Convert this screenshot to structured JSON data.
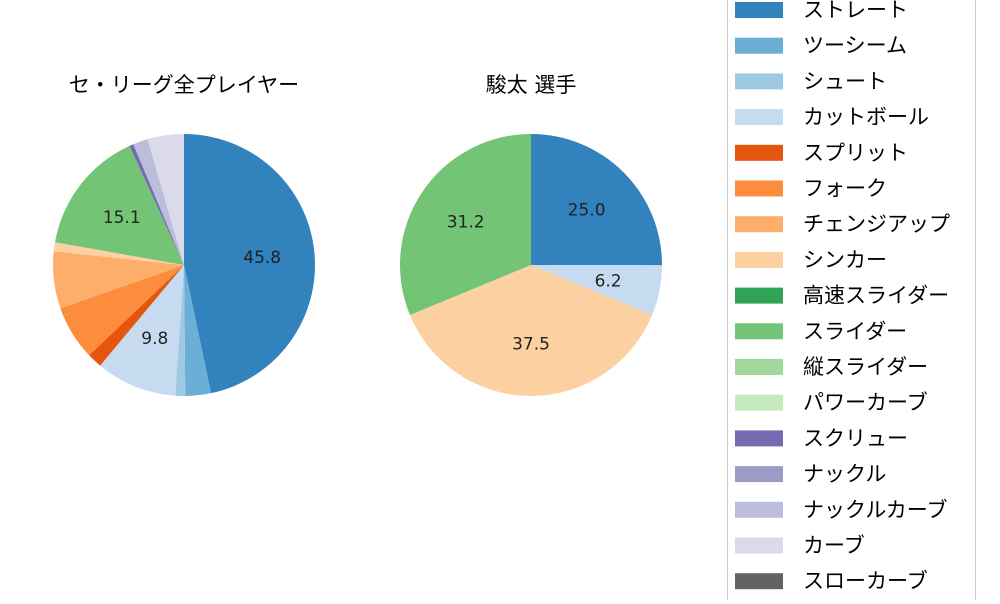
{
  "chart_data": [
    {
      "type": "pie",
      "title": "セ・リーグ全プレイヤー",
      "slices": [
        {
          "label": "ストレート",
          "value": 45.8,
          "color": "#3182bd",
          "show_label": true
        },
        {
          "label": "ツーシーム",
          "value": 3.1,
          "color": "#6baed6",
          "show_label": false
        },
        {
          "label": "シュート",
          "value": 1.2,
          "color": "#9ecae1",
          "show_label": false
        },
        {
          "label": "カットボール",
          "value": 9.8,
          "color": "#c6dbef",
          "show_label": true
        },
        {
          "label": "スプリット",
          "value": 1.8,
          "color": "#e6550d",
          "show_label": false
        },
        {
          "label": "フォーク",
          "value": 6.6,
          "color": "#fd8d3c",
          "show_label": false
        },
        {
          "label": "チェンジアップ",
          "value": 6.9,
          "color": "#fdae6b",
          "show_label": false
        },
        {
          "label": "シンカー",
          "value": 1.1,
          "color": "#fdd0a2",
          "show_label": false
        },
        {
          "label": "スライダー",
          "value": 15.1,
          "color": "#74c476",
          "show_label": true
        },
        {
          "label": "スクリュー",
          "value": 0.5,
          "color": "#756bb1",
          "show_label": false
        },
        {
          "label": "ナックルカーブ",
          "value": 1.8,
          "color": "#bcbddc",
          "show_label": false
        },
        {
          "label": "カーブ",
          "value": 4.4,
          "color": "#dadaeb",
          "show_label": false
        }
      ]
    },
    {
      "type": "pie",
      "title": "駿太  選手",
      "slices": [
        {
          "label": "ストレート",
          "value": 25.0,
          "color": "#3182bd",
          "show_label": true
        },
        {
          "label": "カットボール",
          "value": 6.2,
          "color": "#c6dbef",
          "show_label": true
        },
        {
          "label": "シンカー",
          "value": 37.5,
          "color": "#fdd0a2",
          "show_label": true
        },
        {
          "label": "スライダー",
          "value": 31.2,
          "color": "#74c476",
          "show_label": true
        }
      ]
    }
  ],
  "legend": {
    "placement": "right",
    "items": [
      {
        "label": "ストレート",
        "color": "#3182bd"
      },
      {
        "label": "ツーシーム",
        "color": "#6baed6"
      },
      {
        "label": "シュート",
        "color": "#9ecae1"
      },
      {
        "label": "カットボール",
        "color": "#c6dbef"
      },
      {
        "label": "スプリット",
        "color": "#e6550d"
      },
      {
        "label": "フォーク",
        "color": "#fd8d3c"
      },
      {
        "label": "チェンジアップ",
        "color": "#fdae6b"
      },
      {
        "label": "シンカー",
        "color": "#fdd0a2"
      },
      {
        "label": "高速スライダー",
        "color": "#31a354"
      },
      {
        "label": "スライダー",
        "color": "#74c476"
      },
      {
        "label": "縦スライダー",
        "color": "#a1d99b"
      },
      {
        "label": "パワーカーブ",
        "color": "#c7e9c0"
      },
      {
        "label": "スクリュー",
        "color": "#756bb1"
      },
      {
        "label": "ナックル",
        "color": "#9e9ac8"
      },
      {
        "label": "ナックルカーブ",
        "color": "#bcbddc"
      },
      {
        "label": "カーブ",
        "color": "#dadaeb"
      },
      {
        "label": "スローカーブ",
        "color": "#636363"
      }
    ]
  }
}
